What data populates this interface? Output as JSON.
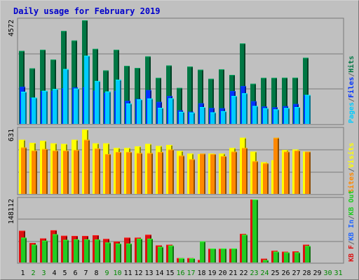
{
  "title": "Daily usage for February 2019",
  "colors": {
    "frame_bg": "#c0c0c0",
    "pages": "#00ccff",
    "files": "#0033ff",
    "hits": "#007744",
    "visits": "#ffff00",
    "sites": "#ff8800",
    "kb_out": "#22cc22",
    "kb_in": "#2266ff",
    "kb_f": "#dd1111",
    "weekday_label": "#000000",
    "weekend_label": "#008800"
  },
  "chart_data": [
    {
      "type": "bar",
      "panel": "hits-files-pages",
      "y_max_label": "4572",
      "ylim": [
        0,
        4572
      ],
      "categories": [
        "1",
        "2",
        "3",
        "4",
        "5",
        "6",
        "7",
        "8",
        "9",
        "10",
        "11",
        "12",
        "13",
        "14",
        "15",
        "16",
        "17",
        "18",
        "19",
        "20",
        "21",
        "22",
        "23",
        "24",
        "25",
        "26",
        "27",
        "28",
        "29",
        "30",
        "31"
      ],
      "series": [
        {
          "name": "Hits",
          "values": [
            3220,
            2450,
            3270,
            2840,
            4100,
            3680,
            4572,
            3310,
            2360,
            3270,
            2560,
            2470,
            2980,
            2030,
            2580,
            1590,
            2530,
            2390,
            1990,
            2410,
            2160,
            3550,
            1770,
            2030,
            2030,
            2040,
            2040,
            2920,
            0,
            0,
            0
          ]
        },
        {
          "name": "Files",
          "values": [
            1640,
            1160,
            1450,
            1460,
            1570,
            1610,
            1620,
            1470,
            1370,
            1460,
            1020,
            1100,
            1490,
            970,
            1230,
            600,
            540,
            910,
            700,
            690,
            1450,
            1670,
            1000,
            770,
            730,
            780,
            880,
            1280,
            0,
            0,
            0
          ]
        },
        {
          "name": "Pages",
          "values": [
            1420,
            1160,
            1460,
            1540,
            2420,
            1560,
            3010,
            1890,
            1430,
            1950,
            900,
            1080,
            1120,
            710,
            1130,
            530,
            500,
            740,
            510,
            560,
            1230,
            1350,
            790,
            690,
            640,
            700,
            740,
            1280,
            0,
            0,
            0
          ]
        }
      ],
      "legend": [
        "Pages",
        "Files",
        "Hits"
      ]
    },
    {
      "type": "bar",
      "panel": "visits-sites",
      "y_max_label": "631",
      "ylim": [
        0,
        631
      ],
      "categories": [
        "1",
        "2",
        "3",
        "4",
        "5",
        "6",
        "7",
        "8",
        "9",
        "10",
        "11",
        "12",
        "13",
        "14",
        "15",
        "16",
        "17",
        "18",
        "19",
        "20",
        "21",
        "22",
        "23",
        "24",
        "25",
        "26",
        "27",
        "28",
        "29",
        "30",
        "31"
      ],
      "series": [
        {
          "name": "Visits",
          "values": [
            530,
            500,
            520,
            495,
            490,
            530,
            631,
            495,
            495,
            450,
            450,
            465,
            490,
            470,
            480,
            420,
            395,
            390,
            395,
            395,
            450,
            550,
            415,
            310,
            330,
            430,
            435,
            415,
            0,
            0,
            0
          ]
        },
        {
          "name": "Sites",
          "values": [
            455,
            425,
            440,
            425,
            425,
            430,
            530,
            445,
            390,
            410,
            410,
            400,
            400,
            410,
            435,
            375,
            340,
            395,
            390,
            370,
            415,
            450,
            320,
            300,
            550,
            415,
            425,
            415,
            0,
            0,
            0
          ]
        }
      ],
      "legend": [
        "Sites",
        "Visits"
      ]
    },
    {
      "type": "bar",
      "panel": "kbytes",
      "y_max_label": "148112",
      "ylim": [
        0,
        148112
      ],
      "categories": [
        "1",
        "2",
        "3",
        "4",
        "5",
        "6",
        "7",
        "8",
        "9",
        "10",
        "11",
        "12",
        "13",
        "14",
        "15",
        "16",
        "17",
        "18",
        "19",
        "20",
        "21",
        "22",
        "23",
        "24",
        "25",
        "26",
        "27",
        "28",
        "29",
        "30",
        "31"
      ],
      "series": [
        {
          "name": "KB F",
          "values": [
            74500,
            45800,
            56500,
            75800,
            62800,
            62400,
            62400,
            64000,
            55400,
            49200,
            58500,
            58500,
            65200,
            40100,
            41600,
            10200,
            10200,
            5900,
            32200,
            32200,
            32200,
            67200,
            148112,
            9000,
            27500,
            25500,
            26100,
            41900,
            0,
            0,
            0
          ]
        },
        {
          "name": "KB Out",
          "values": [
            58500,
            41900,
            51300,
            66300,
            53200,
            54400,
            54400,
            53900,
            47000,
            44500,
            44500,
            56000,
            56000,
            36800,
            39700,
            10100,
            9900,
            49600,
            32800,
            33000,
            33000,
            65300,
            148112,
            5700,
            25500,
            23800,
            23800,
            38800,
            0,
            0,
            0
          ]
        }
      ],
      "legend": [
        "KB F",
        "KB In",
        "KB Out"
      ]
    }
  ],
  "right_legends": [
    [
      {
        "text": "Pages",
        "color": "#00ccff"
      },
      {
        "text": "/",
        "color": "#666666"
      },
      {
        "text": "Files",
        "color": "#0033ff"
      },
      {
        "text": "/",
        "color": "#666666"
      },
      {
        "text": "Hits",
        "color": "#007744"
      }
    ],
    [
      {
        "text": "Sites",
        "color": "#ff8800"
      },
      {
        "text": "/",
        "color": "#666666"
      },
      {
        "text": "Visits",
        "color": "#ffff00"
      }
    ],
    [
      {
        "text": "KB F",
        "color": "#dd1111"
      },
      {
        "text": "/",
        "color": "#666666"
      },
      {
        "text": "KB In",
        "color": "#2266ff"
      },
      {
        "text": "/",
        "color": "#666666"
      },
      {
        "text": "KB Out",
        "color": "#22cc22"
      }
    ]
  ],
  "weekend_days": [
    2,
    3,
    9,
    10,
    16,
    17,
    23,
    24,
    30,
    31
  ]
}
